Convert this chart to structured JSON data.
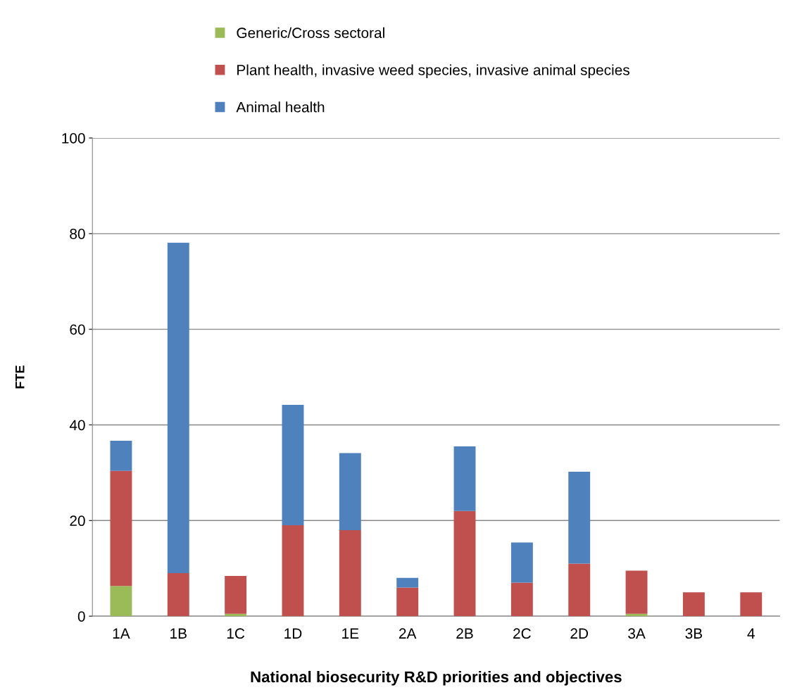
{
  "chart_data": {
    "type": "bar",
    "stacked": true,
    "xlabel": "National biosecurity R&D priorities and objectives",
    "ylabel": "FTE",
    "categories": [
      "1A",
      "1B",
      "1C",
      "1D",
      "1E",
      "2A",
      "2B",
      "2C",
      "2D",
      "3A",
      "3B",
      "4"
    ],
    "series": [
      {
        "name": "Generic/Cross sectoral",
        "color": "#9bbb59",
        "values": [
          6.3,
          0,
          0.5,
          0,
          0,
          0,
          0,
          0,
          0,
          0.5,
          0,
          0
        ]
      },
      {
        "name": "Plant health, invasive weed species, invasive animal species",
        "color": "#c0504d",
        "values": [
          24.1,
          9,
          7.9,
          19,
          18,
          6,
          22,
          7,
          11,
          9,
          5,
          5
        ]
      },
      {
        "name": "Animal health",
        "color": "#4f81bd",
        "values": [
          6.3,
          69.1,
          0,
          25.2,
          16.1,
          2,
          13.5,
          8.4,
          19.2,
          0,
          0,
          0
        ]
      }
    ],
    "ylim": [
      0,
      100
    ],
    "yticks": [
      0,
      20,
      40,
      60,
      80,
      100
    ],
    "grid": "y",
    "legend": "top"
  }
}
